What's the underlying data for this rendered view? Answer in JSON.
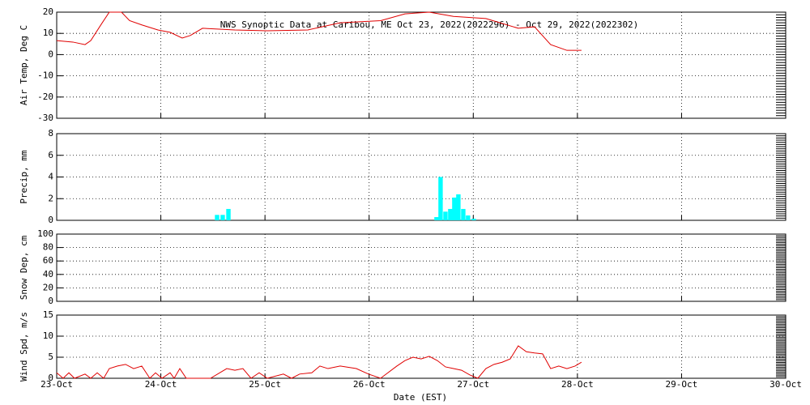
{
  "chart_data": [
    {
      "type": "line",
      "title": "NWS Synoptic Data at Caribou, ME   Oct 23, 2022(2022296) - Oct 29, 2022(2022302)",
      "ylabel": "Air Temp, Deg C",
      "xlim": [
        0,
        7
      ],
      "ylim": [
        -30,
        20
      ],
      "yticks": [
        -30,
        -20,
        -10,
        0,
        10,
        20
      ],
      "grid": true,
      "x": [
        0,
        0.156,
        0.272,
        0.327,
        0.428,
        0.505,
        0.622,
        0.7,
        0.817,
        0.972,
        1.089,
        1.205,
        1.283,
        1.4,
        1.711,
        2.022,
        2.411,
        2.722,
        3.111,
        3.344,
        3.578,
        3.81,
        4.121,
        4.432,
        4.588,
        4.743,
        4.899,
        5.039
      ],
      "series": [
        {
          "color": "#e00000",
          "values": [
            6.6,
            5.9,
            4.7,
            6.6,
            14.3,
            20,
            20,
            16,
            14,
            11.6,
            10.5,
            7.8,
            9,
            12.4,
            11.6,
            11.2,
            11.6,
            15,
            16,
            19.2,
            20,
            18,
            17,
            12.4,
            13.1,
            4.7,
            2,
            2
          ]
        }
      ]
    },
    {
      "type": "bar",
      "ylabel": "Precip, mm",
      "xlim": [
        0,
        7
      ],
      "ylim": [
        0,
        8
      ],
      "yticks": [
        0,
        2,
        4,
        6,
        8
      ],
      "grid": true,
      "x": [
        1.54,
        1.594,
        1.649,
        3.647,
        3.686,
        3.733,
        3.779,
        3.818,
        3.857,
        3.904,
        3.95,
        4.005
      ],
      "series": [
        {
          "color": "#00ffff",
          "values": [
            0.5,
            0.5,
            1.05,
            0.3,
            4,
            0.8,
            1.05,
            2.1,
            2.4,
            1.05,
            0.45,
            0.15
          ]
        }
      ]
    },
    {
      "type": "line",
      "ylabel": "Snow Dep, cm",
      "xlim": [
        0,
        7
      ],
      "ylim": [
        0,
        100
      ],
      "yticks": [
        0,
        20,
        40,
        60,
        80,
        100
      ],
      "grid": true,
      "x": [],
      "series": [
        {
          "color": "#e00000",
          "values": []
        }
      ]
    },
    {
      "type": "line",
      "ylabel": "Wind Spd, m/s",
      "xlabel": "Date (EST)",
      "xlim": [
        0,
        7
      ],
      "ylim": [
        0,
        15
      ],
      "yticks": [
        0,
        5,
        10,
        15
      ],
      "grid": true,
      "xticks": [
        {
          "value": 0,
          "label": "23-Oct"
        },
        {
          "value": 1,
          "label": "24-Oct"
        },
        {
          "value": 2,
          "label": "25-Oct"
        },
        {
          "value": 3,
          "label": "26-Oct"
        },
        {
          "value": 4,
          "label": "27-Oct"
        },
        {
          "value": 5,
          "label": "28-Oct"
        },
        {
          "value": 6,
          "label": "29-Oct"
        },
        {
          "value": 7,
          "label": "30-Oct"
        }
      ],
      "x": [
        0,
        0.062,
        0.117,
        0.171,
        0.272,
        0.327,
        0.389,
        0.451,
        0.505,
        0.583,
        0.661,
        0.739,
        0.817,
        0.894,
        0.949,
        1.011,
        1.089,
        1.128,
        1.182,
        1.244,
        1.477,
        1.633,
        1.711,
        1.788,
        1.866,
        1.944,
        2.022,
        2.177,
        2.255,
        2.333,
        2.449,
        2.527,
        2.605,
        2.722,
        2.877,
        2.994,
        3.11,
        3.266,
        3.344,
        3.421,
        3.499,
        3.577,
        3.655,
        3.733,
        3.81,
        3.888,
        3.966,
        4.044,
        4.121,
        4.199,
        4.277,
        4.355,
        4.432,
        4.51,
        4.588,
        4.666,
        4.743,
        4.821,
        4.899,
        4.977,
        5.039
      ],
      "series": [
        {
          "color": "#e00000",
          "values": [
            1.3,
            0,
            1.3,
            0,
            1,
            0,
            1.3,
            0,
            2.3,
            2.9,
            3.3,
            2.3,
            2.9,
            0,
            1.3,
            0,
            1.3,
            0,
            2.3,
            0,
            0,
            2.3,
            1.9,
            2.3,
            0,
            1.3,
            0,
            1,
            0,
            1,
            1.3,
            2.9,
            2.3,
            2.9,
            2.3,
            1,
            0,
            2.9,
            4.2,
            5,
            4.6,
            5.2,
            4.2,
            2.7,
            2.3,
            1.9,
            0.8,
            0,
            2.3,
            3.3,
            3.8,
            4.6,
            7.7,
            6.3,
            6,
            5.8,
            2.3,
            2.9,
            2.3,
            2.9,
            3.8
          ]
        }
      ]
    }
  ]
}
